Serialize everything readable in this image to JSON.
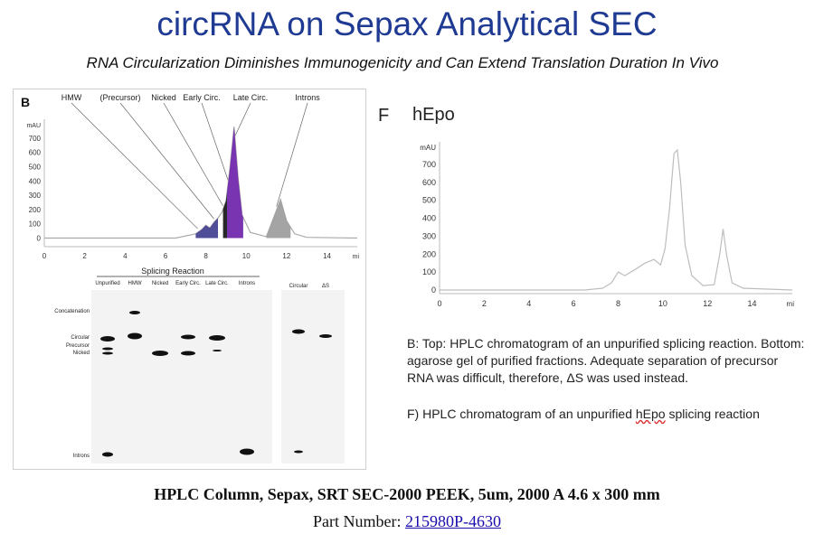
{
  "title": "circRNA on Sepax Analytical SEC",
  "subtitle": "RNA Circularization Diminishes Immunogenicity and Can Extend Translation Duration In Vivo",
  "panel_b": {
    "label": "B",
    "peak_labels": [
      "HMW",
      "(Precursor)",
      "Nicked",
      "Early Circ.",
      "Late Circ.",
      "Introns"
    ],
    "gel": {
      "title": "Splicing Reaction",
      "lanes": [
        "Unpurified",
        "HMW",
        "Nicked",
        "Early Circ.",
        "Late Circ.",
        "Introns"
      ],
      "side_lanes": [
        "Circular",
        "ΔS"
      ],
      "band_labels": [
        "Concatenation",
        "Circular",
        "Precursor",
        "Nicked",
        "Introns"
      ]
    }
  },
  "panel_f": {
    "label": "F",
    "name": "hEpo"
  },
  "chart_data": [
    {
      "type": "area",
      "panel": "B",
      "ylabel": "mAU",
      "xlabel": "mi",
      "x_ticks": [
        0,
        2,
        4,
        6,
        8,
        10,
        12,
        14
      ],
      "y_ticks": [
        0,
        100,
        200,
        300,
        400,
        500,
        600,
        700
      ],
      "xlim": [
        0,
        15.5
      ],
      "ylim": [
        -60,
        800
      ],
      "series": [
        {
          "x": [
            0,
            6.5,
            7.5,
            7.8,
            8.0,
            8.2,
            8.4,
            8.6,
            8.8,
            9.0,
            9.2,
            9.4,
            9.6,
            9.8,
            10.2,
            11.0,
            11.3,
            11.7,
            12.0,
            12.4,
            13,
            15.5
          ],
          "y": [
            0,
            0,
            30,
            60,
            90,
            70,
            110,
            140,
            180,
            260,
            500,
            780,
            420,
            160,
            40,
            10,
            120,
            270,
            120,
            30,
            5,
            0
          ]
        }
      ]
    },
    {
      "type": "line",
      "panel": "F",
      "ylabel": "mAU",
      "xlabel": "mi",
      "x_ticks": [
        0,
        2,
        4,
        6,
        8,
        10,
        12,
        14
      ],
      "y_ticks": [
        0,
        100,
        200,
        300,
        400,
        500,
        600,
        700
      ],
      "xlim": [
        0,
        15.8
      ],
      "ylim": [
        -20,
        800
      ],
      "series": [
        {
          "x": [
            0,
            6.5,
            7.3,
            7.7,
            8.0,
            8.3,
            8.7,
            9.2,
            9.6,
            9.9,
            10.1,
            10.3,
            10.5,
            10.65,
            10.8,
            11.0,
            11.3,
            11.8,
            12.3,
            12.55,
            12.7,
            12.85,
            13.1,
            13.6,
            15.8
          ],
          "y": [
            0,
            0,
            10,
            40,
            100,
            80,
            110,
            150,
            170,
            140,
            230,
            450,
            760,
            780,
            600,
            250,
            80,
            25,
            30,
            200,
            340,
            200,
            40,
            10,
            0
          ]
        }
      ]
    }
  ],
  "caption_b": "B: Top: HPLC chromatogram of an unpurified splicing reaction. Bottom: agarose gel of purified fractions. Adequate separation of precursor RNA was difficult, therefore, ΔS was used instead.",
  "caption_f_prefix": "F) HPLC chromatogram of an unpurified ",
  "caption_f_term": "hEpo",
  "caption_f_suffix": " splicing reaction",
  "column_spec": "HPLC Column, Sepax, SRT SEC-2000 PEEK, 5um, 2000 A 4.6 x 300 mm",
  "part_number_label": "Part Number: ",
  "part_number": "215980P-4630"
}
